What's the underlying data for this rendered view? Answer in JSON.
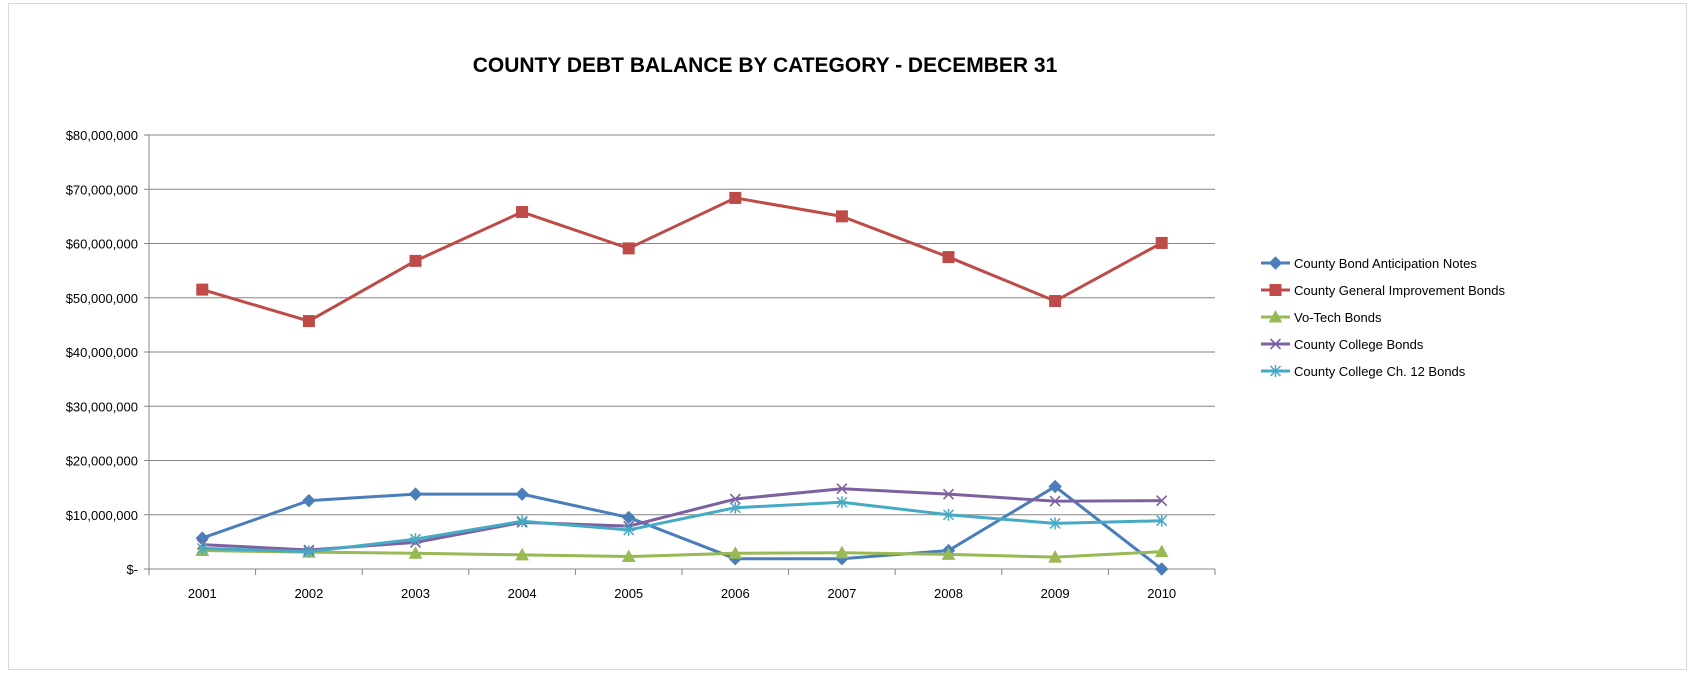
{
  "chart_data": {
    "type": "line",
    "title": "COUNTY DEBT BALANCE BY CATEGORY - DECEMBER 31",
    "xlabel": "",
    "ylabel": "",
    "categories": [
      "2001",
      "2002",
      "2003",
      "2004",
      "2005",
      "2006",
      "2007",
      "2008",
      "2009",
      "2010"
    ],
    "ylim": [
      0,
      80000000
    ],
    "yticks": [
      0,
      10000000,
      20000000,
      30000000,
      40000000,
      50000000,
      60000000,
      70000000,
      80000000
    ],
    "ytick_labels": [
      "$-",
      "$10,000,000",
      "$20,000,000",
      "$30,000,000",
      "$40,000,000",
      "$50,000,000",
      "$60,000,000",
      "$70,000,000",
      "$80,000,000"
    ],
    "grid": "horizontal",
    "legend_position": "right",
    "series": [
      {
        "name": "County Bond Anticipation Notes",
        "color": "#4a7ebb",
        "marker": "diamond",
        "values": [
          5700000,
          12600000,
          13800000,
          13800000,
          9500000,
          1900000,
          1900000,
          3400000,
          15200000,
          0
        ]
      },
      {
        "name": "County General Improvement Bonds",
        "color": "#be4b48",
        "marker": "square",
        "values": [
          51500000,
          45700000,
          56800000,
          65800000,
          59100000,
          68400000,
          65000000,
          57500000,
          49400000,
          60100000
        ]
      },
      {
        "name": "Vo-Tech Bonds",
        "color": "#98b954",
        "marker": "triangle",
        "values": [
          3400000,
          3100000,
          2900000,
          2600000,
          2300000,
          2900000,
          3000000,
          2700000,
          2200000,
          3200000
        ]
      },
      {
        "name": "County College Bonds",
        "color": "#7d60a0",
        "marker": "x",
        "values": [
          4500000,
          3500000,
          4900000,
          8600000,
          7900000,
          12900000,
          14800000,
          13800000,
          12500000,
          12600000
        ]
      },
      {
        "name": "County College Ch. 12 Bonds",
        "color": "#46aac5",
        "marker": "star",
        "values": [
          3800000,
          3200000,
          5500000,
          8800000,
          7200000,
          11300000,
          12300000,
          10000000,
          8400000,
          8900000
        ]
      }
    ]
  }
}
